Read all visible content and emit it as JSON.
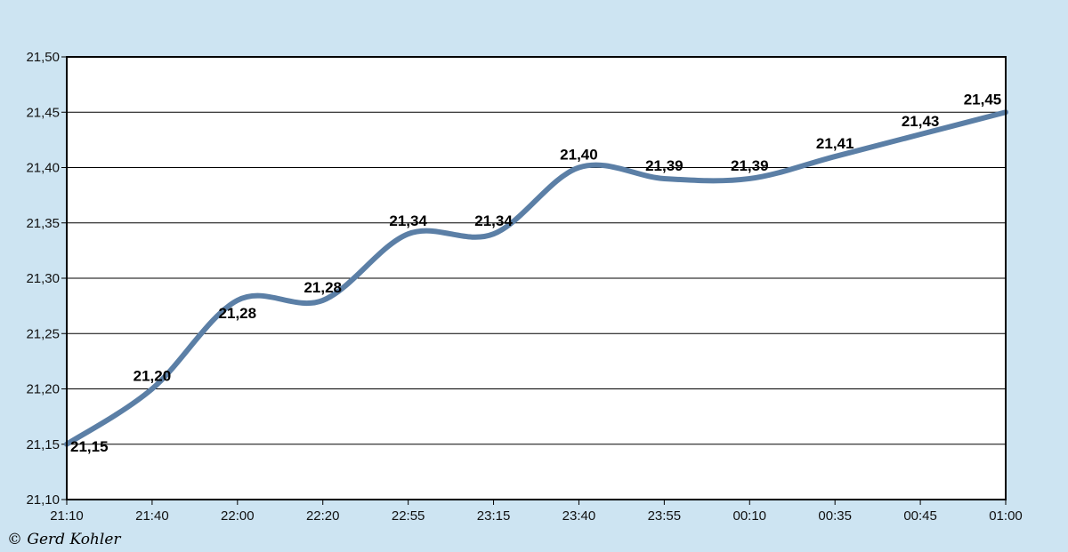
{
  "chart_data": {
    "type": "line",
    "x": [
      "21:10",
      "21:40",
      "22:00",
      "22:20",
      "22:55",
      "23:15",
      "23:40",
      "23:55",
      "00:10",
      "00:35",
      "00:45",
      "01:00"
    ],
    "series": [
      {
        "values": [
          21.15,
          21.2,
          21.28,
          21.28,
          21.34,
          21.34,
          21.4,
          21.39,
          21.39,
          21.41,
          21.43,
          21.45
        ]
      }
    ],
    "data_labels": [
      "21,15",
      "21,20",
      "21,28",
      "21,28",
      "21,34",
      "21,34",
      "21,40",
      "21,39",
      "21,39",
      "21,41",
      "21,43",
      "21,45"
    ],
    "y_ticks": [
      "21,10",
      "21,15",
      "21,20",
      "21,25",
      "21,30",
      "21,35",
      "21,40",
      "21,45",
      "21,50"
    ],
    "ylim": [
      21.1,
      21.5
    ],
    "grid": true,
    "line_color": "#5b7fa6",
    "plot_background": "#ffffff",
    "page_background": "#cde4f2"
  },
  "footer": {
    "copyright": "© Gerd Kohler"
  }
}
